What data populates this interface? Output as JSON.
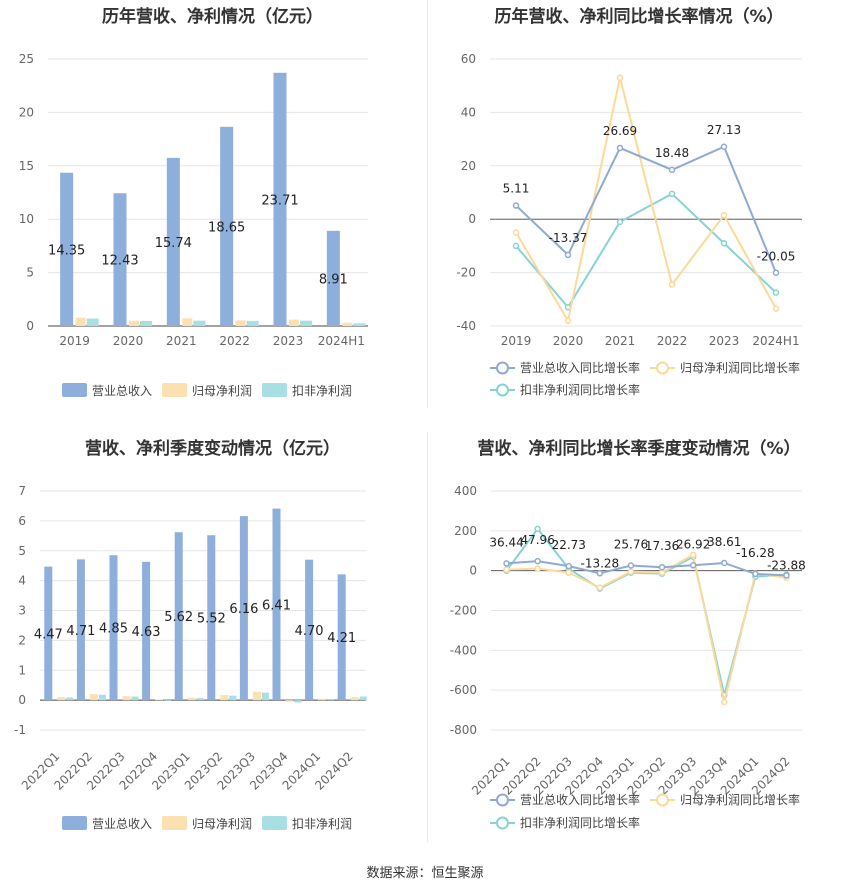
{
  "source_text": "数据来源：恒生聚源",
  "legend": {
    "revenue": "营业总收入",
    "net_profit": "归母净利润",
    "deducted_profit": "扣非净利润",
    "revenue_yoy": "营业总收入同比增长率",
    "net_profit_yoy": "归母净利润同比增长率",
    "deducted_profit_yoy": "扣非净利润同比增长率"
  },
  "colors": {
    "revenue": "#8eaedb",
    "net_profit": "#fbe0b0",
    "deducted_profit": "#a8dfe2",
    "revenue_line": "#8eaad4",
    "net_profit_line": "#fbd999",
    "deducted_profit_line": "#87d3d3"
  },
  "chart_data": [
    {
      "id": "annual-amount",
      "type": "bar",
      "title": "历年营收、净利情况（亿元）",
      "categories": [
        "2019",
        "2020",
        "2021",
        "2022",
        "2023",
        "2024H1"
      ],
      "series": [
        {
          "name": "营业总收入",
          "values": [
            14.35,
            12.43,
            15.74,
            18.65,
            23.71,
            8.91
          ]
        },
        {
          "name": "归母净利润",
          "values": [
            0.78,
            0.5,
            0.72,
            0.53,
            0.6,
            0.3
          ]
        },
        {
          "name": "扣非净利润",
          "values": [
            0.7,
            0.47,
            0.5,
            0.48,
            0.5,
            0.25
          ]
        }
      ],
      "data_labels": [
        "14.35",
        "12.43",
        "15.74",
        "18.65",
        "23.71",
        "8.91"
      ],
      "ylim": [
        0,
        25
      ],
      "yticks": [
        "0",
        "5",
        "10",
        "15",
        "20",
        "25"
      ],
      "grid": true,
      "legend_position": "bottom"
    },
    {
      "id": "annual-growth",
      "type": "line",
      "title": "历年营收、净利同比增长率情况（%）",
      "categories": [
        "2019",
        "2020",
        "2021",
        "2022",
        "2023",
        "2024H1"
      ],
      "series": [
        {
          "name": "营业总收入同比增长率",
          "values": [
            5.11,
            -13.37,
            26.69,
            18.48,
            27.13,
            -20.05
          ]
        },
        {
          "name": "归母净利润同比增长率",
          "values": [
            -5,
            -38,
            53,
            -24.5,
            1.5,
            -33.5
          ]
        },
        {
          "name": "扣非净利润同比增长率",
          "values": [
            -10,
            -33,
            -1,
            9.5,
            -9,
            -27.5
          ]
        }
      ],
      "data_labels": [
        "5.11",
        "-13.37",
        "26.69",
        "18.48",
        "27.13",
        "-20.05"
      ],
      "ylim": [
        -40,
        60
      ],
      "yticks": [
        "-40",
        "-20",
        "0",
        "20",
        "40",
        "60"
      ],
      "grid": true,
      "legend_position": "bottom"
    },
    {
      "id": "quarterly-amount",
      "type": "bar",
      "title": "营收、净利季度变动情况（亿元）",
      "categories": [
        "2022Q1",
        "2022Q2",
        "2022Q3",
        "2022Q4",
        "2023Q1",
        "2023Q2",
        "2023Q3",
        "2023Q4",
        "2024Q1",
        "2024Q2"
      ],
      "series": [
        {
          "name": "营业总收入",
          "values": [
            4.47,
            4.71,
            4.85,
            4.63,
            5.62,
            5.52,
            6.16,
            6.41,
            4.7,
            4.21
          ]
        },
        {
          "name": "归母净利润",
          "values": [
            0.1,
            0.2,
            0.13,
            0.02,
            0.08,
            0.17,
            0.28,
            -0.05,
            0.05,
            0.1
          ]
        },
        {
          "name": "扣非净利润",
          "values": [
            0.09,
            0.18,
            0.12,
            0.0,
            0.07,
            0.15,
            0.25,
            -0.08,
            0.04,
            0.12
          ]
        }
      ],
      "data_labels": [
        "4.47",
        "4.71",
        "4.85",
        "4.63",
        "5.62",
        "5.52",
        "6.16",
        "6.41",
        "4.70",
        "4.21"
      ],
      "ylim": [
        -1,
        7
      ],
      "yticks": [
        "-1",
        "0",
        "1",
        "2",
        "3",
        "4",
        "5",
        "6",
        "7"
      ],
      "grid": true,
      "legend_position": "bottom"
    },
    {
      "id": "quarterly-growth",
      "type": "line",
      "title": "营收、净利同比增长率季度变动情况（%）",
      "categories": [
        "2022Q1",
        "2022Q2",
        "2022Q3",
        "2022Q4",
        "2023Q1",
        "2023Q2",
        "2023Q3",
        "2023Q4",
        "2024Q1",
        "2024Q2"
      ],
      "series": [
        {
          "name": "营业总收入同比增长率",
          "values": [
            36.44,
            47.96,
            22.73,
            -13.28,
            25.76,
            17.36,
            26.92,
            38.61,
            -16.28,
            -23.88
          ]
        },
        {
          "name": "归母净利润同比增长率",
          "values": [
            5,
            10,
            -10,
            -85,
            -5,
            -10,
            80,
            -660,
            -15,
            -35
          ]
        },
        {
          "name": "扣非净利润同比增长率",
          "values": [
            0,
            210,
            10,
            -90,
            -10,
            -15,
            70,
            -625,
            -30,
            -20
          ]
        }
      ],
      "data_labels": [
        "36.44",
        "47.96",
        "22.73",
        "-13.28",
        "25.76",
        "17.36",
        "26.92",
        "38.61",
        "-16.28",
        "-23.88"
      ],
      "ylim": [
        -800,
        400
      ],
      "yticks": [
        "-800",
        "-600",
        "-400",
        "-200",
        "0",
        "200",
        "400"
      ],
      "grid": true,
      "legend_position": "bottom"
    }
  ]
}
